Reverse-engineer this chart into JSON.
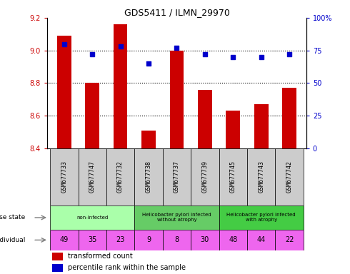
{
  "title": "GDS5411 / ILMN_29970",
  "samples": [
    "GSM677733",
    "GSM677747",
    "GSM677732",
    "GSM677738",
    "GSM677737",
    "GSM677739",
    "GSM677745",
    "GSM677743",
    "GSM677742"
  ],
  "bar_values": [
    9.09,
    8.8,
    9.16,
    8.51,
    9.0,
    8.76,
    8.63,
    8.67,
    8.77
  ],
  "dot_values": [
    80,
    72,
    78,
    65,
    77,
    72,
    70,
    70,
    72
  ],
  "ylim_left": [
    8.4,
    9.2
  ],
  "ylim_right": [
    0,
    100
  ],
  "yticks_left": [
    8.4,
    8.6,
    8.8,
    9.0,
    9.2
  ],
  "yticks_right": [
    0,
    25,
    50,
    75,
    100
  ],
  "bar_color": "#cc0000",
  "dot_color": "#0000cc",
  "individual_values": [
    49,
    35,
    23,
    9,
    8,
    30,
    48,
    44,
    22
  ],
  "individual_color": "#ee66ee",
  "disease_state_label": "disease state",
  "individual_label": "individual",
  "legend_bar_label": "transformed count",
  "legend_dot_label": "percentile rank within the sample",
  "tick_label_color_left": "#cc0000",
  "tick_label_color_right": "#0000cc",
  "bar_width": 0.5,
  "sample_bg_color": "#cccccc",
  "non_infected_color": "#aaffaa",
  "without_atrophy_color": "#66cc66",
  "with_atrophy_color": "#44cc44",
  "groups": [
    {
      "start": 0,
      "end": 3,
      "label": "non-infected",
      "color": "#aaffaa"
    },
    {
      "start": 3,
      "end": 6,
      "label": "Helicobacter pylori infected\nwithout atrophy",
      "color": "#66cc66"
    },
    {
      "start": 6,
      "end": 9,
      "label": "Helicobacter pylori infected\nwith atrophy",
      "color": "#44cc44"
    }
  ]
}
